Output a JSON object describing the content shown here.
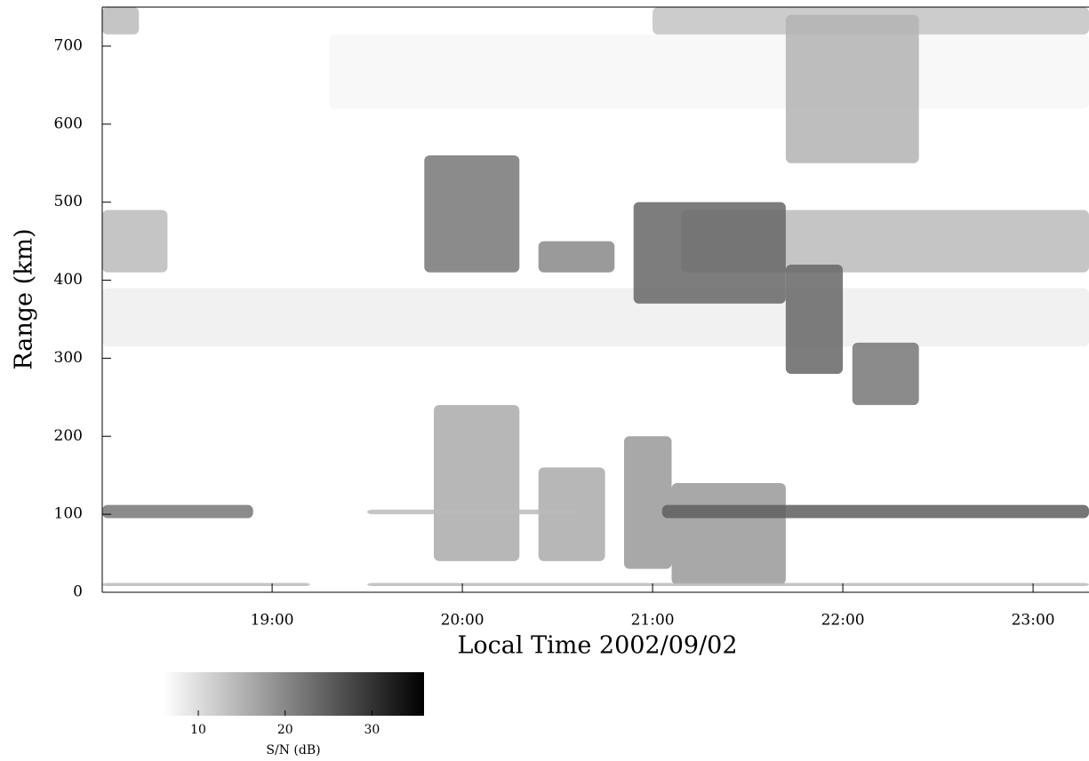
{
  "chart_data": {
    "type": "range-time-intensity",
    "x_label": "Local Time 2002/09/02",
    "y_label": "Range (km)",
    "xlim": [
      18.107,
      23.294
    ],
    "ylim": [
      0,
      750
    ],
    "xticks": [
      {
        "value": 19,
        "label": "19:00"
      },
      {
        "value": 20,
        "label": "20:00"
      },
      {
        "value": 21,
        "label": "21:00"
      },
      {
        "value": 22,
        "label": "22:00"
      },
      {
        "value": 23,
        "label": "23:00"
      }
    ],
    "yticks": [
      0,
      100,
      200,
      300,
      400,
      500,
      600,
      700
    ],
    "colorbar": {
      "label": "S/N  (dB)",
      "lim": [
        6,
        36
      ],
      "ticks": [
        10,
        20,
        30
      ]
    },
    "echoes": [
      {
        "x": [
          18.107,
          23.294
        ],
        "y": [
          315,
          390
        ],
        "value": 8
      },
      {
        "x": [
          19.3,
          23.294
        ],
        "y": [
          620,
          715
        ],
        "value": 7
      },
      {
        "x": [
          18.107,
          18.3
        ],
        "y": [
          715,
          750
        ],
        "value": 14
      },
      {
        "x": [
          21.0,
          23.294
        ],
        "y": [
          715,
          750
        ],
        "value": 13
      },
      {
        "x": [
          18.107,
          18.45
        ],
        "y": [
          410,
          490
        ],
        "value": 14
      },
      {
        "x": [
          21.15,
          23.294
        ],
        "y": [
          410,
          490
        ],
        "value": 14
      },
      {
        "x": [
          21.7,
          22.4
        ],
        "y": [
          550,
          740
        ],
        "value": 15
      },
      {
        "x": [
          19.85,
          20.3
        ],
        "y": [
          40,
          240
        ],
        "value": 16
      },
      {
        "x": [
          20.4,
          20.75
        ],
        "y": [
          40,
          160
        ],
        "value": 16
      },
      {
        "x": [
          20.85,
          21.1
        ],
        "y": [
          30,
          200
        ],
        "value": 18
      },
      {
        "x": [
          21.1,
          21.7
        ],
        "y": [
          10,
          140
        ],
        "value": 18
      },
      {
        "x": [
          18.107,
          19.2
        ],
        "y": [
          8,
          12
        ],
        "value": 14
      },
      {
        "x": [
          19.5,
          23.294
        ],
        "y": [
          8,
          12
        ],
        "value": 14
      },
      {
        "x": [
          18.107,
          18.9
        ],
        "y": [
          95,
          112
        ],
        "value": 22
      },
      {
        "x": [
          19.5,
          20.6
        ],
        "y": [
          100,
          106
        ],
        "value": 14
      },
      {
        "x": [
          21.05,
          23.294
        ],
        "y": [
          95,
          112
        ],
        "value": 25
      },
      {
        "x": [
          19.8,
          20.3
        ],
        "y": [
          410,
          560
        ],
        "value": 22
      },
      {
        "x": [
          20.4,
          20.8
        ],
        "y": [
          410,
          450
        ],
        "value": 20
      },
      {
        "x": [
          20.9,
          21.7
        ],
        "y": [
          370,
          500
        ],
        "value": 24
      },
      {
        "x": [
          21.7,
          22.0
        ],
        "y": [
          280,
          420
        ],
        "value": 24
      },
      {
        "x": [
          22.05,
          22.4
        ],
        "y": [
          240,
          320
        ],
        "value": 22
      }
    ]
  }
}
